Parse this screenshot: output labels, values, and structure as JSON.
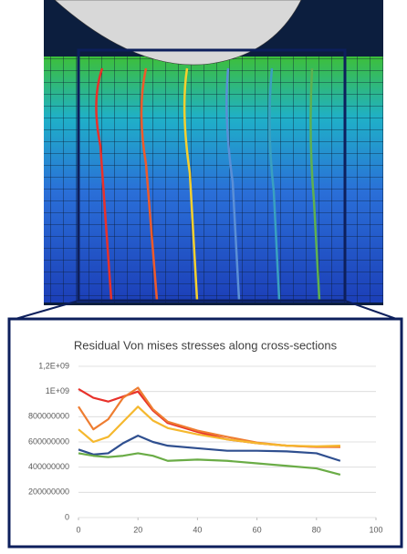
{
  "chart_data": {
    "type": "line",
    "title": "Residual Von mises stresses along cross-sections",
    "x": [
      0,
      5,
      10,
      15,
      20,
      25,
      30,
      40,
      50,
      60,
      70,
      80,
      88
    ],
    "series": [
      {
        "color": "#e8312a",
        "values": [
          1020000000,
          950000000,
          920000000,
          960000000,
          1000000000,
          850000000,
          750000000,
          680000000,
          620000000,
          590000000,
          570000000,
          560000000,
          560000000
        ]
      },
      {
        "color": "#ee7d31",
        "values": [
          880000000,
          700000000,
          780000000,
          950000000,
          1030000000,
          860000000,
          760000000,
          690000000,
          640000000,
          595000000,
          570000000,
          562000000,
          560000000
        ]
      },
      {
        "color": "#f5b82e",
        "values": [
          700000000,
          600000000,
          640000000,
          760000000,
          880000000,
          770000000,
          710000000,
          660000000,
          620000000,
          590000000,
          570000000,
          565000000,
          570000000
        ]
      },
      {
        "color": "#2f4f8f",
        "values": [
          540000000,
          500000000,
          510000000,
          590000000,
          650000000,
          600000000,
          570000000,
          550000000,
          530000000,
          530000000,
          525000000,
          510000000,
          450000000
        ]
      },
      {
        "color": "#6aac46",
        "values": [
          510000000,
          490000000,
          480000000,
          490000000,
          510000000,
          490000000,
          450000000,
          460000000,
          450000000,
          430000000,
          410000000,
          390000000,
          340000000
        ]
      }
    ],
    "xlim": [
      0,
      100
    ],
    "xticks": [
      0,
      20,
      40,
      60,
      80,
      100
    ],
    "ylim": [
      0,
      1200000000
    ],
    "yticks": [
      0,
      200000000,
      400000000,
      600000000,
      800000000,
      {
        "value": 1000000000,
        "label": "1E+09"
      },
      {
        "value": 1200000000,
        "label": "1,2E+09"
      }
    ],
    "grid": true
  }
}
